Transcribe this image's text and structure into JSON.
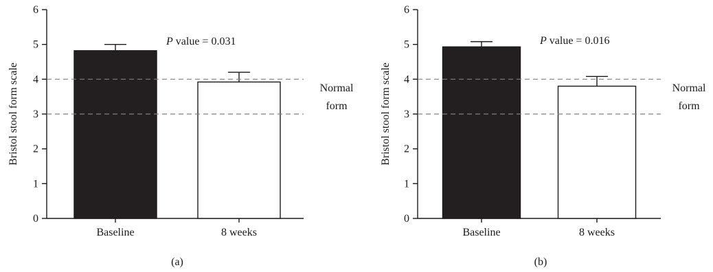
{
  "chart_data": [
    {
      "type": "bar",
      "panel_label": "(a)",
      "categories": [
        "Baseline",
        "8 weeks"
      ],
      "values": [
        4.82,
        3.92
      ],
      "errors": [
        0.18,
        0.28
      ],
      "bar_colors": [
        "#231f20",
        "#ffffff"
      ],
      "ylabel": "Bristol stool form scale",
      "ylim": [
        0,
        6
      ],
      "yticks": [
        "0",
        "1",
        "2",
        "3",
        "4",
        "5",
        "6"
      ],
      "reference_lines": [
        3,
        4
      ],
      "reference_band_label_line1": "Normal",
      "reference_band_label_line2": "form",
      "annotation_italic": "P",
      "annotation_text": " value = 0.031"
    },
    {
      "type": "bar",
      "panel_label": "(b)",
      "categories": [
        "Baseline",
        "8 weeks"
      ],
      "values": [
        4.93,
        3.8
      ],
      "errors": [
        0.15,
        0.28
      ],
      "bar_colors": [
        "#231f20",
        "#ffffff"
      ],
      "ylabel": "Bristol stool form scale",
      "ylim": [
        0,
        6
      ],
      "yticks": [
        "0",
        "1",
        "2",
        "3",
        "4",
        "5",
        "6"
      ],
      "reference_lines": [
        3,
        4
      ],
      "reference_band_label_line1": "Normal",
      "reference_band_label_line2": "form",
      "annotation_italic": "P",
      "annotation_text": " value = 0.016"
    }
  ],
  "colors": {
    "axis": "#1a1a1a",
    "reference_line": "#808080"
  }
}
